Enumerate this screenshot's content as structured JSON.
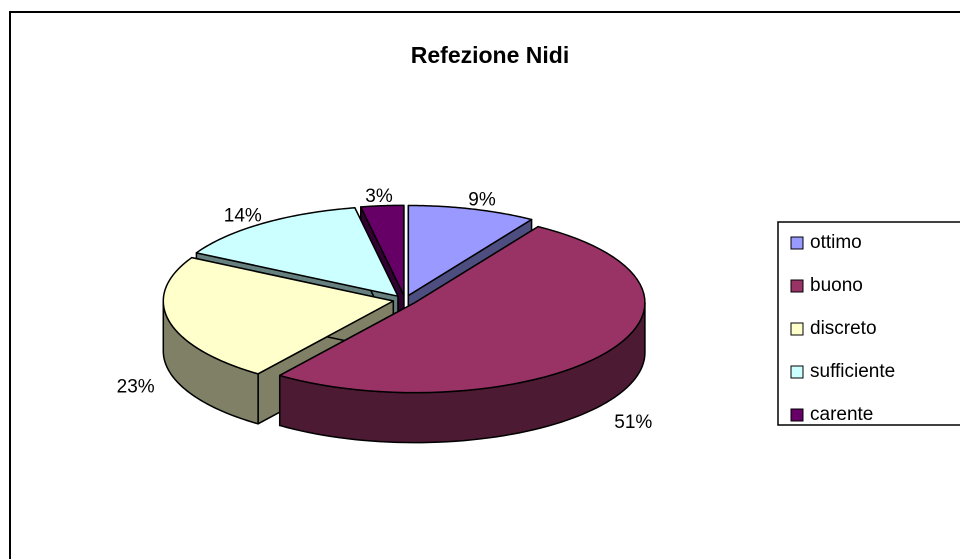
{
  "chart_data": {
    "type": "pie",
    "title": "Refezione Nidi",
    "categories": [
      "ottimo",
      "buono",
      "discreto",
      "sufficiente",
      "carente"
    ],
    "values": [
      9,
      51,
      23,
      14,
      3
    ],
    "value_labels": [
      "9%",
      "51%",
      "23%",
      "14%",
      "3%"
    ],
    "colors": [
      "#9999ff",
      "#993366",
      "#ffffcc",
      "#ccffff",
      "#660066"
    ],
    "legend": "right"
  }
}
